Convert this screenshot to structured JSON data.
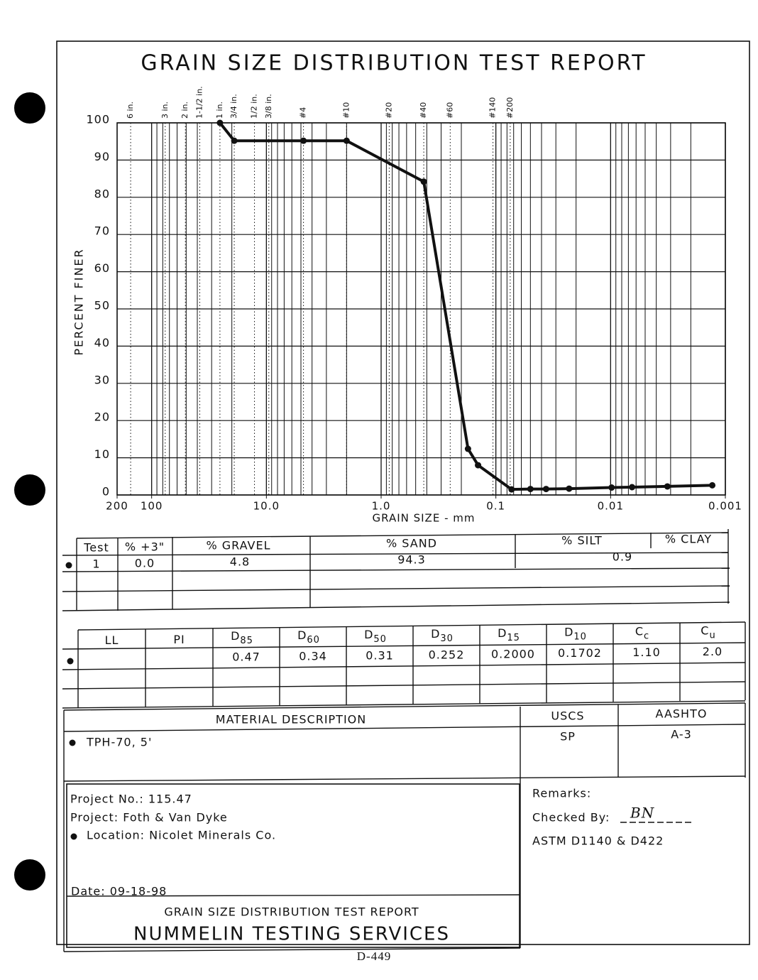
{
  "chart_data": {
    "type": "line",
    "title": "GRAIN SIZE DISTRIBUTION TEST REPORT",
    "x_label": "GRAIN SIZE - mm",
    "y_label": "PERCENT FINER",
    "log_x": true,
    "grid": true,
    "color": "#111111",
    "xlim": [
      200,
      0.001
    ],
    "xticks": [
      200,
      100,
      {
        "value": 10,
        "label": "10.0"
      },
      {
        "value": 1,
        "label": "1.0"
      },
      0.1,
      0.01,
      0.001
    ],
    "ylim": [
      0,
      100
    ],
    "yticks": [
      0,
      10,
      20,
      30,
      40,
      50,
      60,
      70,
      80,
      90,
      100
    ],
    "sieves": [
      {
        "label": "6 in.",
        "size": 152.4
      },
      {
        "label": "3 in.",
        "size": 76.2
      },
      {
        "label": "2 in.",
        "size": 50.8
      },
      {
        "label": "1-1/2 in.",
        "size": 38.1
      },
      {
        "label": "1 in.",
        "size": 25.4
      },
      {
        "label": "3/4 in.",
        "size": 19.05
      },
      {
        "label": "1/2 in.",
        "size": 12.7
      },
      {
        "label": "3/8 in.",
        "size": 9.525
      },
      {
        "label": "#4",
        "size": 4.75
      },
      {
        "label": "#10",
        "size": 2.0
      },
      {
        "label": "#20",
        "size": 0.85
      },
      {
        "label": "#40",
        "size": 0.425
      },
      {
        "label": "#60",
        "size": 0.25
      },
      {
        "label": "#140",
        "size": 0.106
      },
      {
        "label": "#200",
        "size": 0.075
      }
    ],
    "x": [
      25.4,
      19.05,
      4.75,
      2.0,
      0.425,
      0.175,
      0.143,
      0.073,
      0.05,
      0.0365,
      0.023,
      0.0098,
      0.0065,
      0.0032,
      0.0013
    ],
    "values": [
      100,
      95.2,
      95.2,
      95.2,
      84.2,
      12.4,
      8.0,
      1.5,
      1.6,
      1.6,
      1.7,
      2.0,
      2.1,
      2.3,
      2.6
    ]
  },
  "test_table": {
    "headers": [
      "Test",
      "% +3\"",
      "% GRAVEL",
      "% SAND",
      "% SILT",
      "% CLAY"
    ],
    "row": {
      "test": "1",
      "plus3": "0.0",
      "gravel": "4.8",
      "sand": "94.3",
      "fines": "0.9"
    }
  },
  "size_table": {
    "headers": [
      "LL",
      "PI",
      {
        "main": "D",
        "sub": "85"
      },
      {
        "main": "D",
        "sub": "60"
      },
      {
        "main": "D",
        "sub": "50"
      },
      {
        "main": "D",
        "sub": "30"
      },
      {
        "main": "D",
        "sub": "15"
      },
      {
        "main": "D",
        "sub": "10"
      },
      {
        "main": "C",
        "sub": "c"
      },
      {
        "main": "C",
        "sub": "u"
      }
    ],
    "row": [
      "0.47",
      "0.34",
      "0.31",
      "0.252",
      "0.2000",
      "0.1702",
      "1.10",
      "2.0"
    ]
  },
  "material": {
    "header": "MATERIAL DESCRIPTION",
    "uscs_header": "USCS",
    "aashto_header": "AASHTO",
    "description": "TPH-70, 5'",
    "uscs": "SP",
    "aashto": "A-3"
  },
  "project": {
    "number": "Project No.: 115.47",
    "name": "Project: Foth & Van Dyke",
    "location": "Location: Nicolet Minerals Co.",
    "date": "Date: 09-18-98"
  },
  "remarks": {
    "title": "Remarks:",
    "checked_by": "Checked By:",
    "initials": "BN",
    "standard": "ASTM D1140 & D422"
  },
  "footer": {
    "report": "GRAIN SIZE DISTRIBUTION TEST REPORT",
    "company": "NUMMELIN TESTING SERVICES",
    "page": "D-449"
  }
}
